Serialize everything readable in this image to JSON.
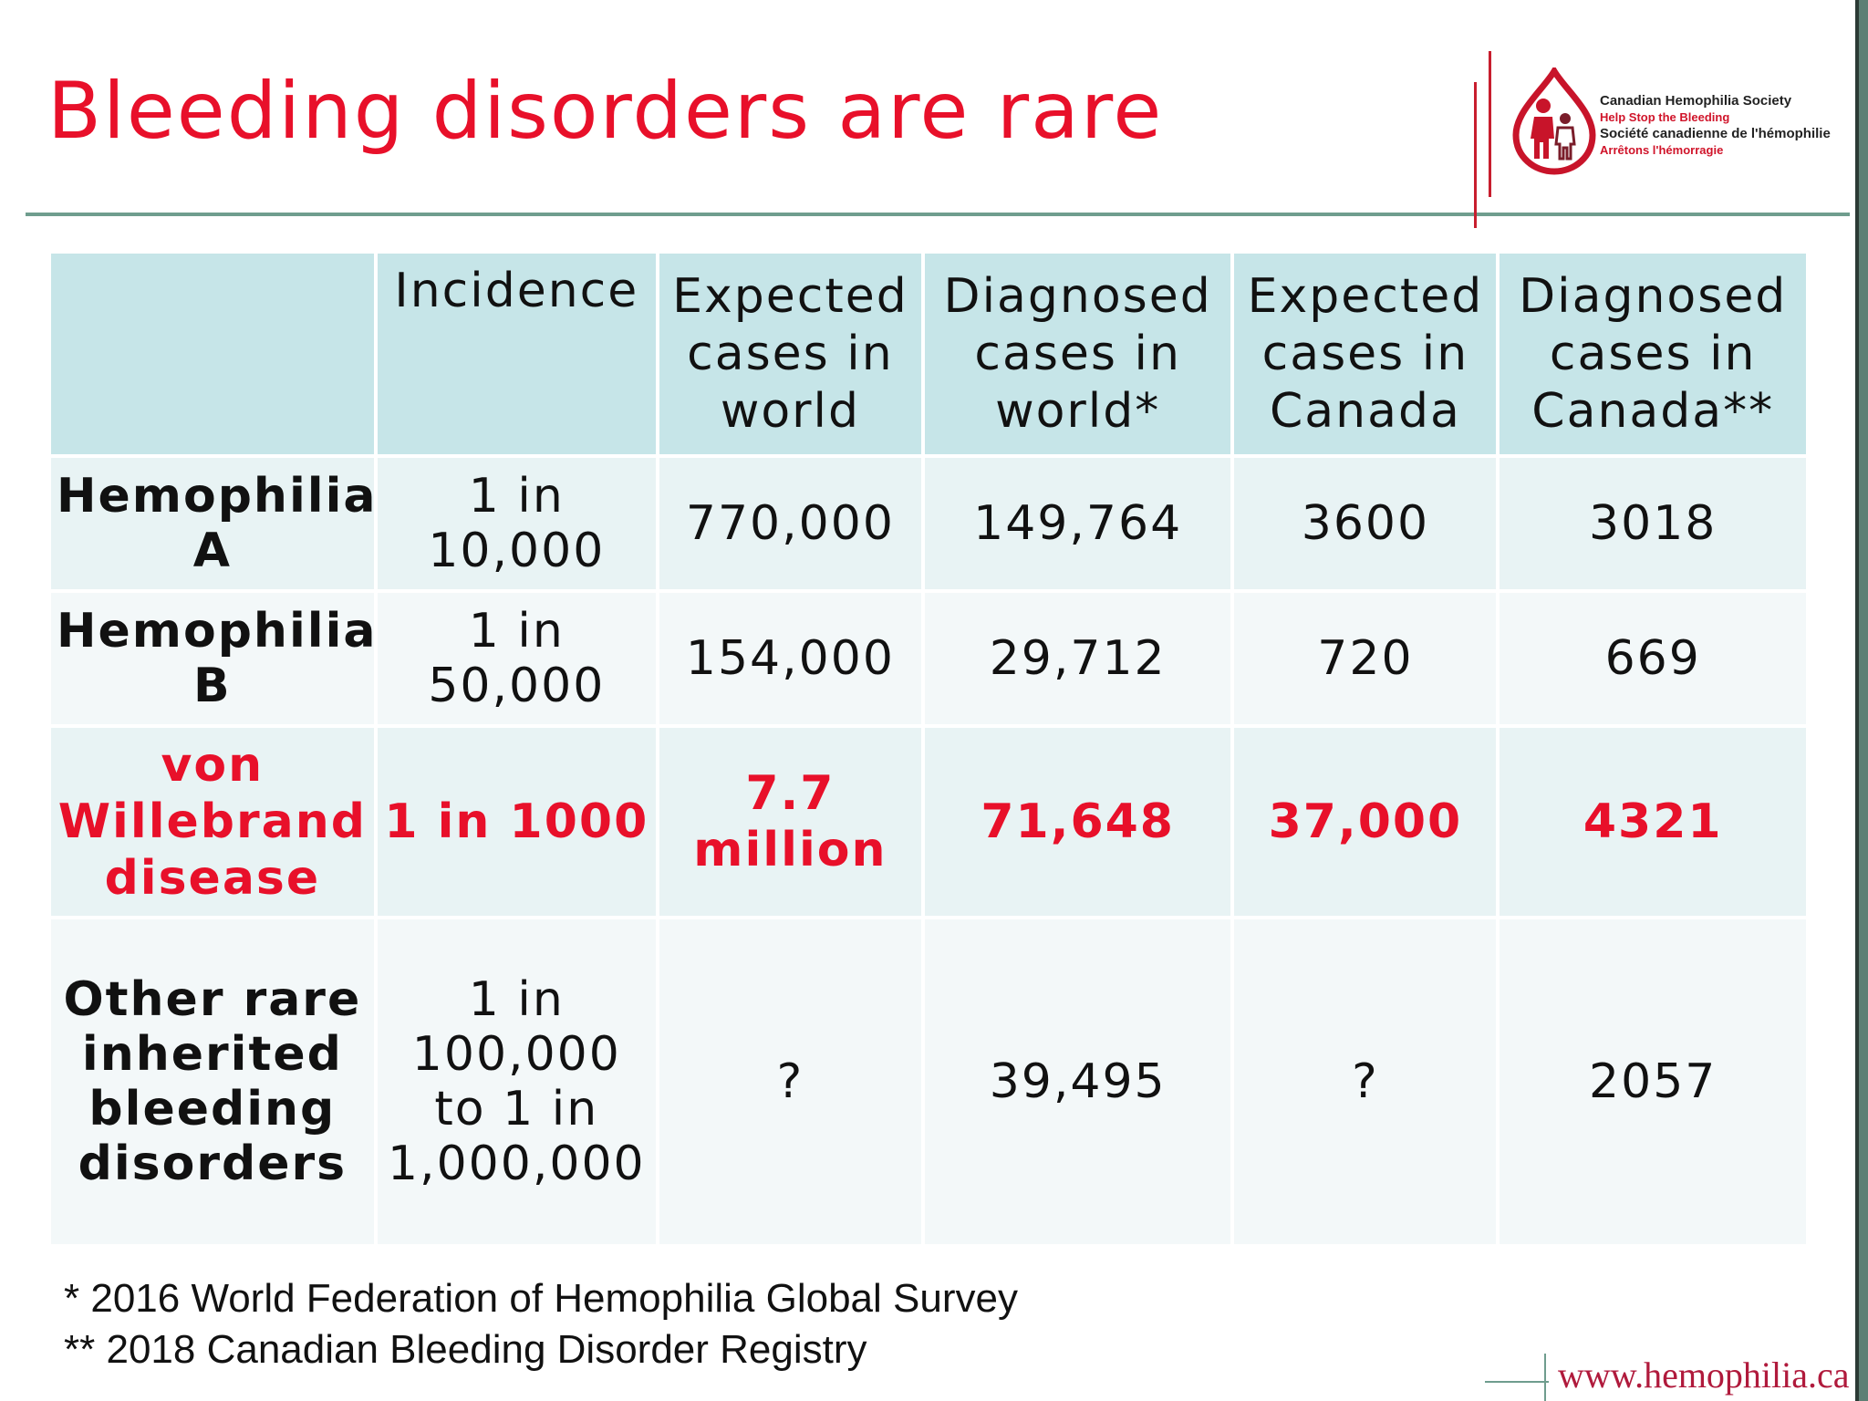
{
  "title": "Bleeding disorders are rare",
  "logo": {
    "line1": "Canadian Hemophilia Society",
    "line2": "Help Stop the Bleeding",
    "line3": "Société canadienne de l'hémophilie",
    "line4": "Arrêtons l'hémorragie",
    "brand_color": "#d0142a"
  },
  "table": {
    "headers": [
      "",
      "Incidence",
      "Expected cases in world",
      "Diagnosed cases in world*",
      "Expected cases in Canada",
      "Diagnosed cases in Canada**"
    ],
    "rows": [
      {
        "label": "Hemophilia A",
        "incidence": "1 in 10,000",
        "expected_world": "770,000",
        "diagnosed_world": "149,764",
        "expected_canada": "3600",
        "diagnosed_canada": "3018"
      },
      {
        "label": "Hemophilia B",
        "incidence": "1 in 50,000",
        "expected_world": "154,000",
        "diagnosed_world": "29,712",
        "expected_canada": "720",
        "diagnosed_canada": "669"
      },
      {
        "label": "von Willebrand disease",
        "incidence": "1 in 1000",
        "expected_world": "7.7 million",
        "diagnosed_world": "71,648",
        "expected_canada": "37,000",
        "diagnosed_canada": "4321"
      },
      {
        "label": "Other rare inherited bleeding disorders",
        "incidence": "1 in 100,000 to 1 in 1,000,000",
        "expected_world": "?",
        "diagnosed_world": "39,495",
        "expected_canada": "?",
        "diagnosed_canada": "2057"
      }
    ],
    "header_bg": "#c6e5e8",
    "highlight_color": "#e8102a"
  },
  "footnotes": [
    "* 2016 World Federation of Hemophilia Global Survey",
    "** 2018 Canadian Bleeding Disorder Registry"
  ],
  "website": "www.hemophilia.ca"
}
